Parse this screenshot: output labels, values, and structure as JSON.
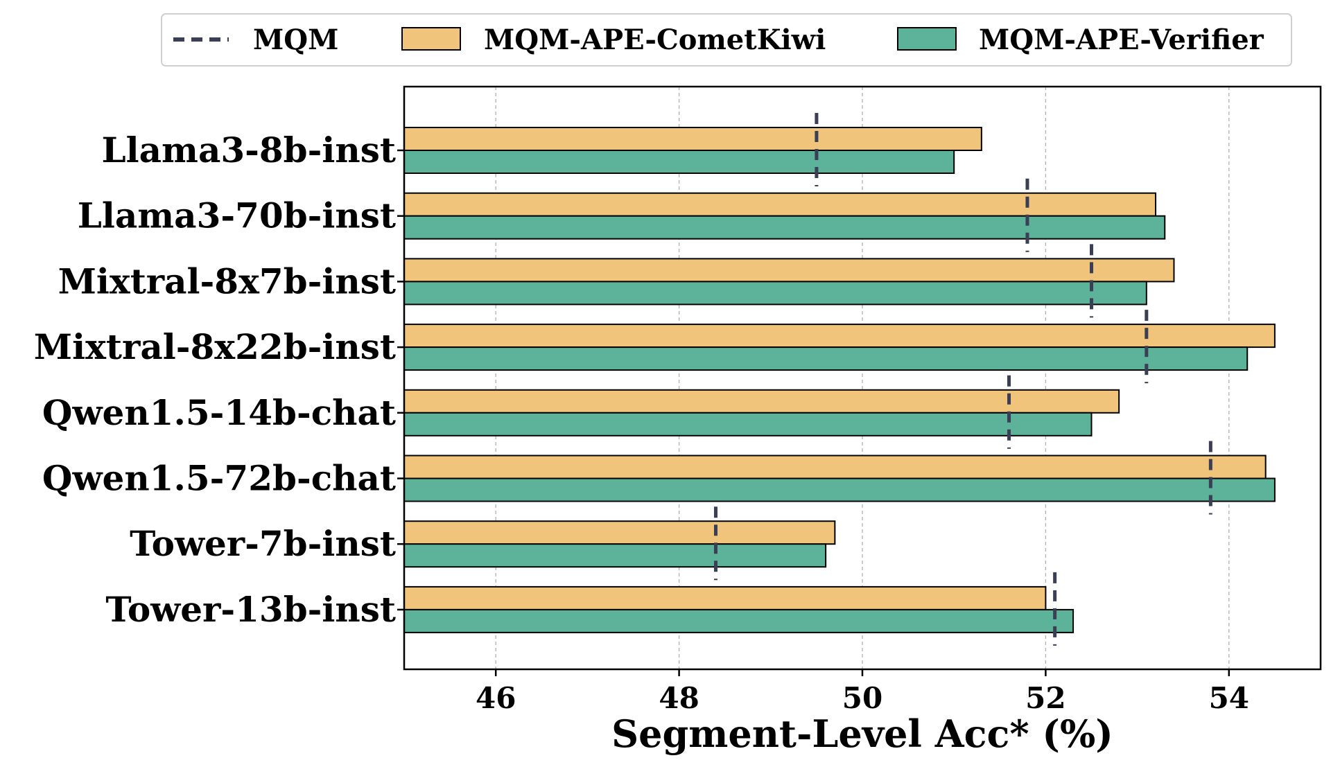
{
  "chart_data": {
    "type": "bar",
    "orientation": "horizontal",
    "categories": [
      "Llama3-8b-inst",
      "Llama3-70b-inst",
      "Mixtral-8x7b-inst",
      "Mixtral-8x22b-inst",
      "Qwen1.5-14b-chat",
      "Qwen1.5-72b-chat",
      "Tower-7b-inst",
      "Tower-13b-inst"
    ],
    "series": [
      {
        "name": "MQM-APE-CometKiwi",
        "color": "#F0C47A",
        "values": [
          51.3,
          53.2,
          53.4,
          54.5,
          52.8,
          54.4,
          49.7,
          52.0
        ]
      },
      {
        "name": "MQM-APE-Verifier",
        "color": "#5DB39A",
        "values": [
          51.0,
          53.3,
          53.1,
          54.2,
          52.5,
          54.5,
          49.6,
          52.3
        ]
      }
    ],
    "reference": {
      "name": "MQM",
      "style": "dashed",
      "color": "#3B3F55",
      "values": [
        49.5,
        51.8,
        52.5,
        53.1,
        51.6,
        53.8,
        48.4,
        52.1
      ]
    },
    "xlabel": "Segment-Level Acc* (%)",
    "ylabel": "",
    "xlim": [
      45.0,
      55.0
    ],
    "xticks": [
      46,
      48,
      50,
      52,
      54
    ],
    "grid": "x-dashed",
    "legend_position": "top"
  }
}
